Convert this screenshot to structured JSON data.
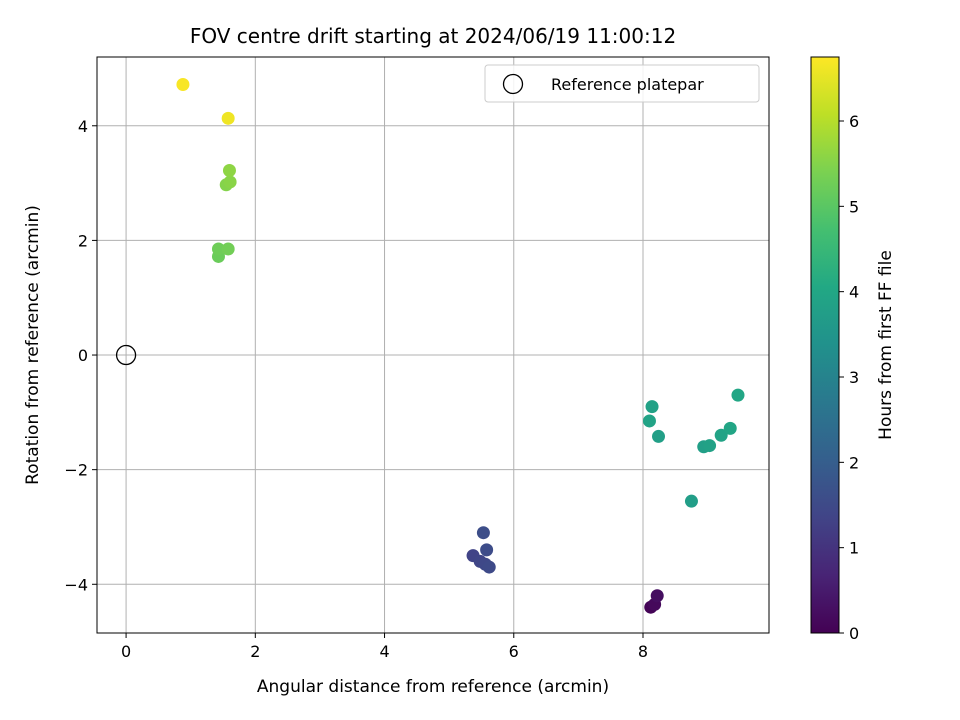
{
  "chart_data": {
    "type": "scatter",
    "title": "FOV centre drift starting at 2024/06/19 11:00:12",
    "xlabel": "Angular distance from reference (arcmin)",
    "ylabel": "Rotation from reference (arcmin)",
    "xlim": [
      -0.45,
      9.95
    ],
    "ylim": [
      -4.85,
      5.2
    ],
    "x_ticks": [
      0,
      2,
      4,
      6,
      8
    ],
    "y_ticks": [
      -4,
      -2,
      0,
      2,
      4
    ],
    "grid": true,
    "legend": {
      "placement": "top-right",
      "entries": [
        "Reference platepar"
      ]
    },
    "reference_point": {
      "name": "Reference platepar",
      "x": 0,
      "y": 0
    },
    "colorbar": {
      "label": "Hours from first FF file",
      "colormap": "viridis",
      "range": [
        0,
        6.75
      ],
      "ticks": [
        0,
        1,
        2,
        3,
        4,
        5,
        6
      ]
    },
    "points": [
      {
        "x": 8.12,
        "y": -4.4,
        "hours": 0.05
      },
      {
        "x": 8.18,
        "y": -4.35,
        "hours": 0.15
      },
      {
        "x": 8.22,
        "y": -4.2,
        "hours": 0.25
      },
      {
        "x": 5.37,
        "y": -3.5,
        "hours": 1.35
      },
      {
        "x": 5.48,
        "y": -3.6,
        "hours": 1.4
      },
      {
        "x": 5.56,
        "y": -3.65,
        "hours": 1.45
      },
      {
        "x": 5.62,
        "y": -3.7,
        "hours": 1.5
      },
      {
        "x": 5.58,
        "y": -3.4,
        "hours": 1.55
      },
      {
        "x": 5.53,
        "y": -3.1,
        "hours": 1.6
      },
      {
        "x": 8.75,
        "y": -2.55,
        "hours": 3.75
      },
      {
        "x": 8.94,
        "y": -1.6,
        "hours": 3.8
      },
      {
        "x": 9.03,
        "y": -1.58,
        "hours": 3.85
      },
      {
        "x": 9.21,
        "y": -1.4,
        "hours": 3.9
      },
      {
        "x": 9.35,
        "y": -1.28,
        "hours": 3.95
      },
      {
        "x": 9.47,
        "y": -0.7,
        "hours": 4.0
      },
      {
        "x": 8.1,
        "y": -1.15,
        "hours": 3.9
      },
      {
        "x": 8.14,
        "y": -0.9,
        "hours": 3.85
      },
      {
        "x": 8.24,
        "y": -1.42,
        "hours": 3.8
      },
      {
        "x": 1.43,
        "y": 1.72,
        "hours": 5.2
      },
      {
        "x": 1.43,
        "y": 1.85,
        "hours": 5.25
      },
      {
        "x": 1.58,
        "y": 1.85,
        "hours": 5.3
      },
      {
        "x": 1.55,
        "y": 2.97,
        "hours": 5.5
      },
      {
        "x": 1.61,
        "y": 3.02,
        "hours": 5.55
      },
      {
        "x": 1.6,
        "y": 3.22,
        "hours": 5.6
      },
      {
        "x": 1.58,
        "y": 4.13,
        "hours": 6.6
      },
      {
        "x": 0.88,
        "y": 4.72,
        "hours": 6.7
      }
    ]
  }
}
